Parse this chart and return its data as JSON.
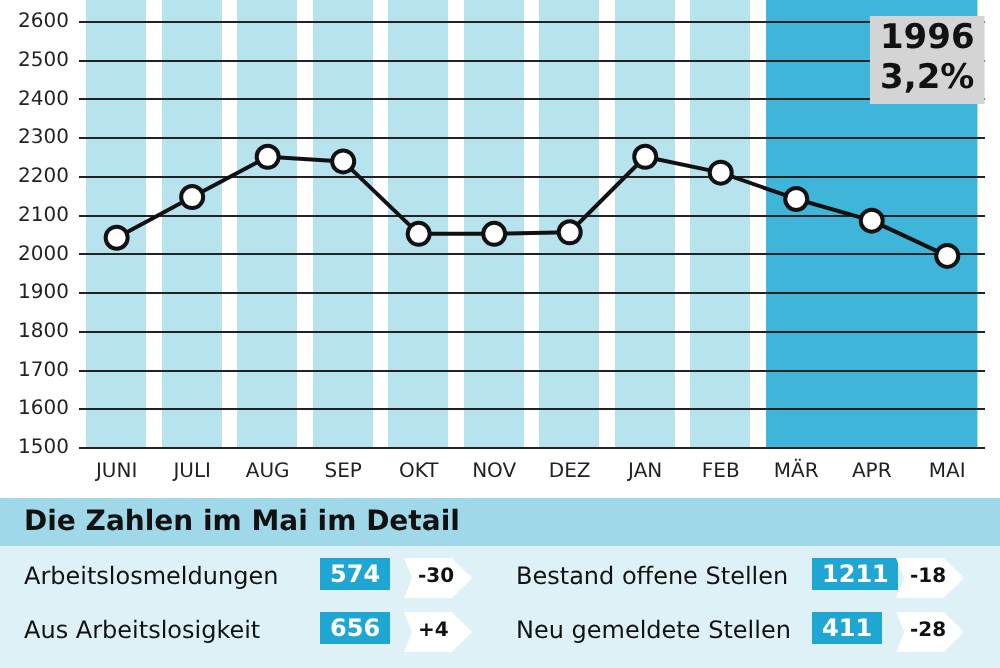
{
  "chart_data": {
    "type": "line",
    "categories": [
      "JUNI",
      "JULI",
      "AUG",
      "SEP",
      "OKT",
      "NOV",
      "DEZ",
      "JAN",
      "FEB",
      "MÄR",
      "APR",
      "MAI"
    ],
    "series": [
      {
        "color": "#111111",
        "values": [
          2043,
          2148,
          2252,
          2240,
          2053,
          2053,
          2057,
          2252,
          2211,
          2143,
          2087,
          1996
        ]
      }
    ],
    "ylim": [
      1500,
      2600
    ],
    "yticks": [
      1500,
      1600,
      1700,
      1800,
      1900,
      2000,
      2100,
      2200,
      2300,
      2400,
      2500,
      2600
    ],
    "grid": "y",
    "legend": false,
    "marker": "circle",
    "line_style": "solid",
    "bands": [
      {
        "axis": "x",
        "from": "MÄR",
        "to": "MAI",
        "color": "#3fb6d9"
      }
    ],
    "annotations": [
      "1996",
      "3,2%",
      "Die Zahlen im Mai im Detail",
      "Arbeitslosmeldungen",
      "574",
      "-30",
      "Bestand offene Stellen",
      "1211",
      "-18",
      "Aus Arbeitslosigkeit",
      "656",
      "+4",
      "Neu gemeldete Stellen",
      "411",
      "-28"
    ]
  }
}
